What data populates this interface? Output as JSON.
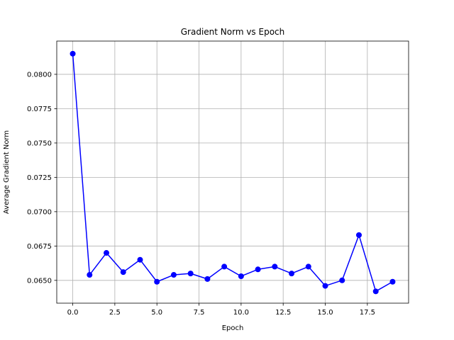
{
  "chart_data": {
    "type": "line",
    "title": "Gradient Norm vs Epoch",
    "xlabel": "Epoch",
    "ylabel": "Average Gradient Norm",
    "xlim": [
      -0.95,
      19.95
    ],
    "ylim": [
      0.06334,
      0.08242
    ],
    "grid": true,
    "x_ticks": [
      0.0,
      2.5,
      5.0,
      7.5,
      10.0,
      12.5,
      15.0,
      17.5
    ],
    "x_tick_labels": [
      "0.0",
      "2.5",
      "5.0",
      "7.5",
      "10.0",
      "12.5",
      "15.0",
      "17.5"
    ],
    "y_ticks": [
      0.065,
      0.0675,
      0.07,
      0.0725,
      0.075,
      0.0775,
      0.08
    ],
    "y_tick_labels": [
      "0.0650",
      "0.0675",
      "0.0700",
      "0.0725",
      "0.0750",
      "0.0775",
      "0.0800"
    ],
    "series": [
      {
        "color": "#0000ff",
        "marker": "circle",
        "x": [
          0,
          1,
          2,
          3,
          4,
          5,
          6,
          7,
          8,
          9,
          10,
          11,
          12,
          13,
          14,
          15,
          16,
          17,
          18,
          19
        ],
        "values": [
          0.0815,
          0.0654,
          0.067,
          0.0656,
          0.0665,
          0.0649,
          0.0654,
          0.0655,
          0.0651,
          0.066,
          0.0653,
          0.0658,
          0.066,
          0.0655,
          0.066,
          0.0646,
          0.065,
          0.0683,
          0.0642,
          0.0649
        ]
      }
    ]
  }
}
